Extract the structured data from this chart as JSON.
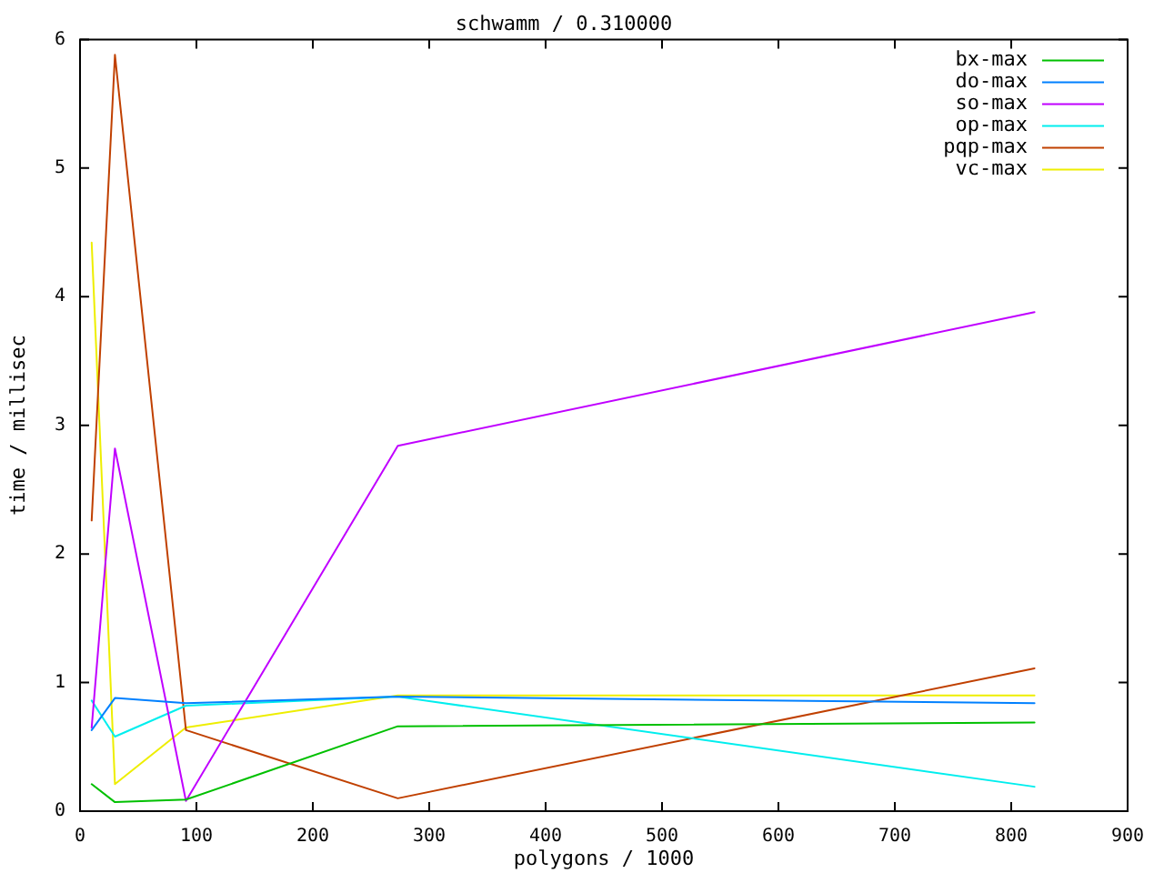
{
  "chart_data": {
    "type": "line",
    "title": "schwamm / 0.310000",
    "xlabel": "polygons / 1000",
    "ylabel": "time / millisec",
    "x": [
      10,
      30,
      91,
      273,
      820
    ],
    "series": [
      {
        "name": "bx-max",
        "color": "#00c000",
        "values": [
          0.21,
          0.07,
          0.09,
          0.66,
          0.69
        ]
      },
      {
        "name": "do-max",
        "color": "#0080ff",
        "values": [
          0.63,
          0.88,
          0.84,
          0.89,
          0.84
        ]
      },
      {
        "name": "so-max",
        "color": "#c000ff",
        "values": [
          0.65,
          2.82,
          0.08,
          2.84,
          3.88
        ]
      },
      {
        "name": "op-max",
        "color": "#00eeee",
        "values": [
          0.86,
          0.58,
          0.82,
          0.89,
          0.19
        ]
      },
      {
        "name": "pqp-max",
        "color": "#c04000",
        "values": [
          2.26,
          5.88,
          0.63,
          0.1,
          1.11
        ]
      },
      {
        "name": "vc-max",
        "color": "#eeee00",
        "values": [
          4.42,
          0.21,
          0.65,
          0.9,
          0.9
        ]
      }
    ],
    "xlim": [
      0,
      900
    ],
    "xticks": [
      0,
      100,
      200,
      300,
      400,
      500,
      600,
      700,
      800,
      900
    ],
    "ylim": [
      0,
      6
    ],
    "yticks": [
      0,
      1,
      2,
      3,
      4,
      5,
      6
    ],
    "legend": "top right",
    "marker": "none",
    "line_style": "solid"
  }
}
